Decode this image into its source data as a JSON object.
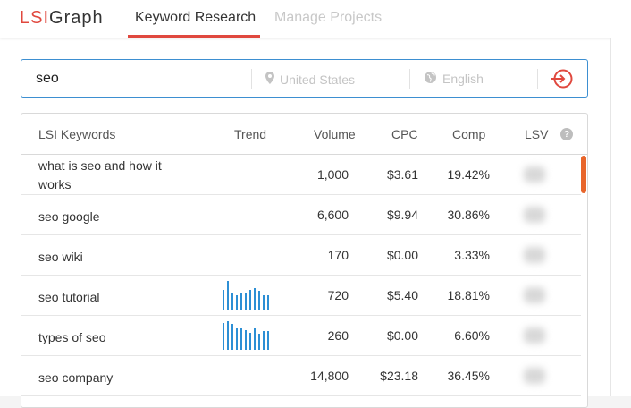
{
  "app": {
    "logo_lsi": "LSI",
    "logo_graph": "Graph"
  },
  "nav": {
    "keyword_research": "Keyword Research",
    "manage_projects": "Manage Projects"
  },
  "search": {
    "query": "seo",
    "location_placeholder": "United States",
    "language_placeholder": "English"
  },
  "table": {
    "headers": {
      "keywords": "LSI Keywords",
      "trend": "Trend",
      "volume": "Volume",
      "cpc": "CPC",
      "comp": "Comp",
      "lsv": "LSV"
    },
    "rows": [
      {
        "keyword": "what is seo and how it works",
        "volume": "1,000",
        "cpc": "$3.61",
        "comp": "19.42%",
        "trend": []
      },
      {
        "keyword": "seo google",
        "volume": "6,600",
        "cpc": "$9.94",
        "comp": "30.86%",
        "trend": []
      },
      {
        "keyword": "seo wiki",
        "volume": "170",
        "cpc": "$0.00",
        "comp": "3.33%",
        "trend": []
      },
      {
        "keyword": "seo tutorial",
        "volume": "720",
        "cpc": "$5.40",
        "comp": "18.81%",
        "trend": [
          0.7,
          1.0,
          0.55,
          0.5,
          0.55,
          0.6,
          0.7,
          0.75,
          0.65,
          0.5,
          0.5
        ]
      },
      {
        "keyword": "types of seo",
        "volume": "260",
        "cpc": "$0.00",
        "comp": "6.60%",
        "trend": [
          0.95,
          1.0,
          0.9,
          0.75,
          0.75,
          0.7,
          0.6,
          0.75,
          0.55,
          0.65,
          0.65
        ]
      },
      {
        "keyword": "seo company",
        "volume": "14,800",
        "cpc": "$23.18",
        "comp": "36.45%",
        "trend": []
      }
    ]
  },
  "colors": {
    "brand": "#e0483e",
    "accent": "#3d8fd1",
    "trend": "#2d8fd5",
    "scroll": "#e8652b"
  }
}
